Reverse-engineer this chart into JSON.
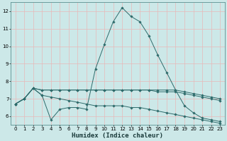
{
  "title": "",
  "xlabel": "Humidex (Indice chaleur)",
  "ylabel": "",
  "xlim": [
    -0.5,
    23.5
  ],
  "ylim": [
    5.5,
    12.5
  ],
  "xticks": [
    0,
    1,
    2,
    3,
    4,
    5,
    6,
    7,
    8,
    9,
    10,
    11,
    12,
    13,
    14,
    15,
    16,
    17,
    18,
    19,
    20,
    21,
    22,
    23
  ],
  "yticks": [
    6,
    7,
    8,
    9,
    10,
    11,
    12
  ],
  "bg_color": "#cce8e8",
  "grid_color": "#e8b8b8",
  "line_color": "#2e6b6b",
  "lines": [
    {
      "x": [
        0,
        1,
        2,
        3,
        4,
        5,
        6,
        7,
        8,
        9,
        10,
        11,
        12,
        13,
        14,
        15,
        16,
        17,
        18,
        19,
        20,
        21,
        22,
        23
      ],
      "y": [
        6.7,
        7.0,
        7.6,
        7.2,
        5.8,
        6.4,
        6.5,
        6.5,
        6.4,
        8.7,
        10.1,
        11.4,
        12.2,
        11.7,
        11.4,
        10.6,
        9.5,
        8.5,
        7.5,
        6.6,
        6.2,
        5.9,
        5.8,
        5.7
      ]
    },
    {
      "x": [
        0,
        1,
        2,
        3,
        4,
        5,
        6,
        7,
        8,
        9,
        10,
        11,
        12,
        13,
        14,
        15,
        16,
        17,
        18,
        19,
        20,
        21,
        22,
        23
      ],
      "y": [
        6.7,
        7.0,
        7.6,
        7.5,
        7.5,
        7.5,
        7.5,
        7.5,
        7.5,
        7.5,
        7.5,
        7.5,
        7.5,
        7.5,
        7.5,
        7.5,
        7.5,
        7.5,
        7.5,
        7.4,
        7.3,
        7.2,
        7.1,
        7.0
      ]
    },
    {
      "x": [
        0,
        1,
        2,
        3,
        4,
        5,
        6,
        7,
        8,
        9,
        10,
        11,
        12,
        13,
        14,
        15,
        16,
        17,
        18,
        19,
        20,
        21,
        22,
        23
      ],
      "y": [
        6.7,
        7.0,
        7.6,
        7.5,
        7.5,
        7.5,
        7.5,
        7.5,
        7.5,
        7.5,
        7.5,
        7.5,
        7.5,
        7.5,
        7.5,
        7.5,
        7.4,
        7.4,
        7.4,
        7.3,
        7.2,
        7.1,
        7.0,
        6.9
      ]
    },
    {
      "x": [
        0,
        1,
        2,
        3,
        4,
        5,
        6,
        7,
        8,
        9,
        10,
        11,
        12,
        13,
        14,
        15,
        16,
        17,
        18,
        19,
        20,
        21,
        22,
        23
      ],
      "y": [
        6.7,
        7.0,
        7.6,
        7.2,
        7.1,
        7.0,
        6.9,
        6.8,
        6.7,
        6.6,
        6.6,
        6.6,
        6.6,
        6.5,
        6.5,
        6.4,
        6.3,
        6.2,
        6.1,
        6.0,
        5.9,
        5.8,
        5.7,
        5.6
      ]
    }
  ]
}
